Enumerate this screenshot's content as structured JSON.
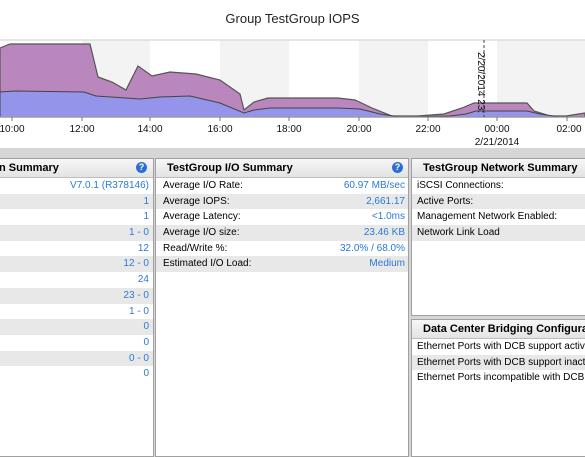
{
  "chart": {
    "title": "Group TestGroup IOPS",
    "x_ticks": [
      "10:00",
      "12:00",
      "14:00",
      "16:00",
      "18:00",
      "20:00",
      "22:00",
      "00:00",
      "02:00"
    ],
    "date_label": "2/21/2014",
    "marker_label": "2/20/2014 23:",
    "colors": {
      "top_fill": "#b986bd",
      "bottom_fill": "#9494ea",
      "line": "#555555",
      "marker": "#444444",
      "grid": "#e4e4e4"
    }
  },
  "chart_data": {
    "type": "area",
    "x_ticks": [
      "10:00",
      "12:00",
      "14:00",
      "16:00",
      "18:00",
      "20:00",
      "22:00",
      "00:00",
      "02:00"
    ],
    "series": [],
    "grid": true
  },
  "summary_panel": {
    "title": "n Summary",
    "rows": [
      "V7.0.1 (R378146)",
      "1",
      "1",
      "1 - 0",
      "12",
      "12 - 0",
      "24",
      "23 - 0",
      "1 - 0",
      "0",
      "0",
      "0 - 0",
      "0"
    ]
  },
  "io_panel": {
    "title": "TestGroup I/O Summary",
    "rows": [
      {
        "label": "Average I/O Rate:",
        "value": "60.97 MB/sec"
      },
      {
        "label": "Average IOPS:",
        "value": "2,661.17"
      },
      {
        "label": "Average Latency:",
        "value": "<1.0ms"
      },
      {
        "label": "Average I/O size:",
        "value": "23.46 KB"
      },
      {
        "label": "Read/Write %:",
        "value": "32.0% / 68.0%"
      },
      {
        "label": "Estimated I/O Load:",
        "value": "Medium"
      }
    ]
  },
  "network_panel": {
    "title": "TestGroup Network Summary",
    "rows": [
      "iSCSI Connections:",
      "Active Ports:",
      "Management Network Enabled:",
      "Network Link Load"
    ]
  },
  "dcb_panel": {
    "title": "Data Center Bridging Configurat",
    "rows": [
      "Ethernet Ports with DCB support activ",
      "Ethernet Ports with DCB support inact",
      "Ethernet Ports incompatible with DCB:"
    ]
  }
}
